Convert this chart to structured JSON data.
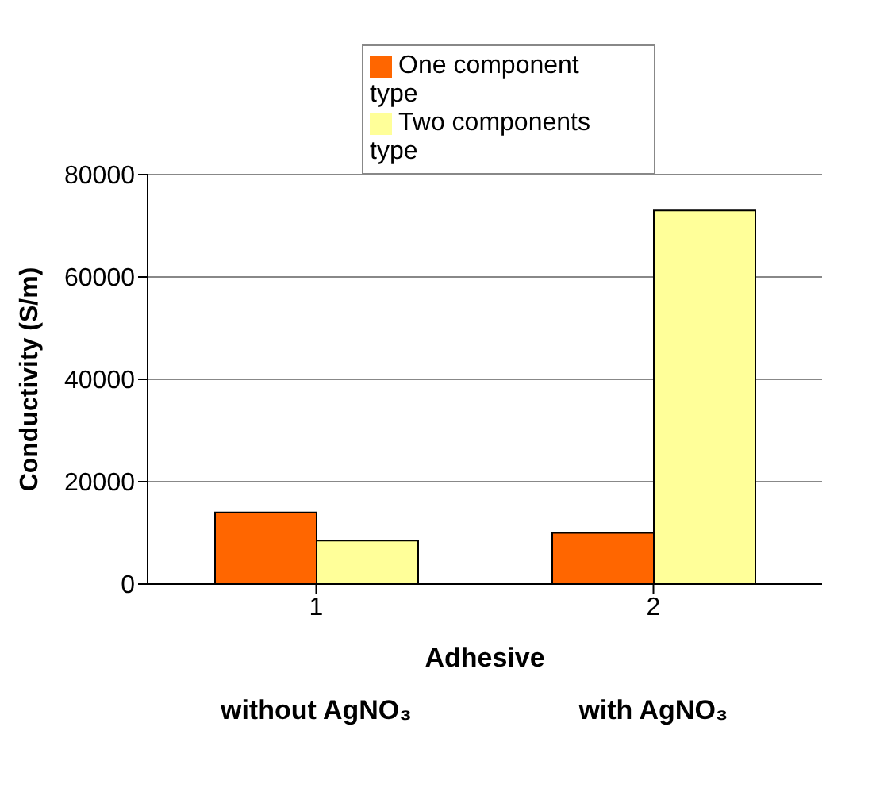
{
  "chart_data": {
    "type": "bar",
    "xlabel": "Adhesive",
    "ylabel": "Conductivity (S/m)",
    "categories": [
      "1",
      "2"
    ],
    "series": [
      {
        "name": "One component type",
        "color": "#ff6600",
        "values": [
          14000,
          10000
        ]
      },
      {
        "name": "Two components type",
        "color": "#ffff99",
        "values": [
          8500,
          73000
        ]
      }
    ],
    "ylim": [
      0,
      80000
    ],
    "yticks": [
      0,
      20000,
      40000,
      60000,
      80000
    ],
    "grid": "y",
    "legend": "top",
    "annotations": [
      "without AgNO₃",
      "with AgNO₃"
    ]
  }
}
